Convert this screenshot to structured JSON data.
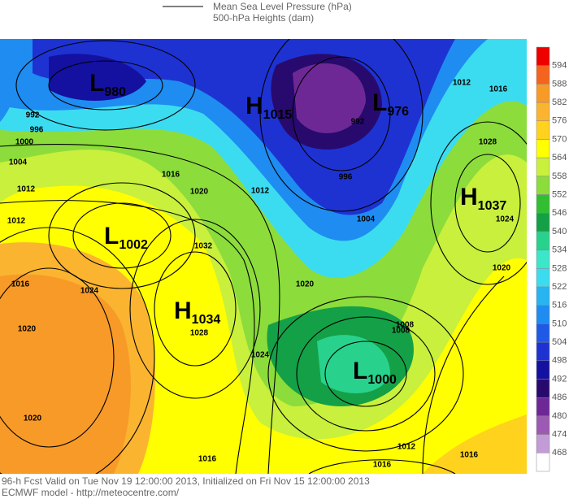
{
  "header": {
    "line1": "Mean Sea Level Pressure (hPa)",
    "line2": "500-hPa Heights (dam)"
  },
  "colorbar": {
    "labels": [
      "594",
      "588",
      "582",
      "576",
      "570",
      "564",
      "558",
      "552",
      "546",
      "540",
      "534",
      "528",
      "522",
      "516",
      "510",
      "504",
      "498",
      "492",
      "486",
      "480",
      "474",
      "468"
    ],
    "colors": [
      "#ee0000",
      "#f4641e",
      "#f89a28",
      "#fbb430",
      "#ffd21e",
      "#ffff00",
      "#c8f03c",
      "#8cdc3c",
      "#32be32",
      "#14a046",
      "#28d28c",
      "#3ce6c8",
      "#3cdcf0",
      "#28b4f0",
      "#1e8cf0",
      "#1e5ae6",
      "#1e32d2",
      "#1410a0",
      "#280a6e",
      "#6e2896",
      "#9c5ab4",
      "#c39bd7",
      "#ffffff"
    ]
  },
  "centers": [
    {
      "type": "L",
      "value": "980"
    },
    {
      "type": "H",
      "value": "1015"
    },
    {
      "type": "L",
      "value": "976"
    },
    {
      "type": "H",
      "value": "1037"
    },
    {
      "type": "L",
      "value": "1002"
    },
    {
      "type": "H",
      "value": "1034"
    },
    {
      "type": "L",
      "value": "1000"
    }
  ],
  "contours": [
    "992",
    "996",
    "1000",
    "1004",
    "1012",
    "1016",
    "1020",
    "1012",
    "1032",
    "1028",
    "1024",
    "1020",
    "1020",
    "1024",
    "1020",
    "1016",
    "1016",
    "1012",
    "1008",
    "1004",
    "1008",
    "996",
    "992",
    "1012",
    "1016",
    "1028",
    "1024",
    "1020",
    "1016",
    "1016",
    "1012"
  ],
  "footer": {
    "line1": "96-h Fcst Valid on Tue Nov 19 12:00:00 2013, Initialized on Fri Nov 15 12:00:00 2013",
    "line2": "ECMWF model - http://meteocentre.com/"
  }
}
